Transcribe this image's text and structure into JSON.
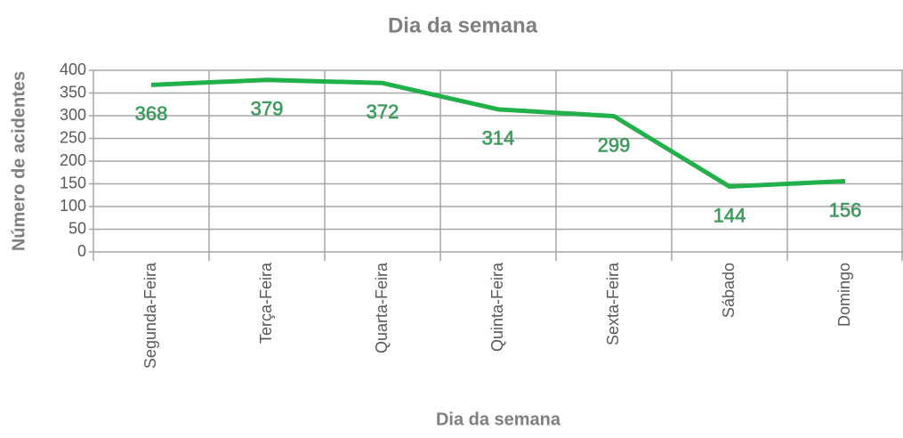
{
  "chart_data": {
    "type": "line",
    "title": "Dia da semana",
    "x_label": "Dia da semana",
    "y_label": "Número de acidentes",
    "categories": [
      "Segunda-Feira",
      "Terça-Feira",
      "Quarta-Feira",
      "Quinta-Feira",
      "Sexta-Feira",
      "Sábado",
      "Domingo"
    ],
    "series": [
      {
        "name": "Número de acidentes",
        "color": "#22b04b",
        "values": [
          368,
          379,
          372,
          314,
          299,
          144,
          156
        ]
      }
    ],
    "ylim": [
      0,
      400
    ],
    "yticks": [
      0,
      50,
      100,
      150,
      200,
      250,
      300,
      350,
      400
    ],
    "grid": true
  }
}
